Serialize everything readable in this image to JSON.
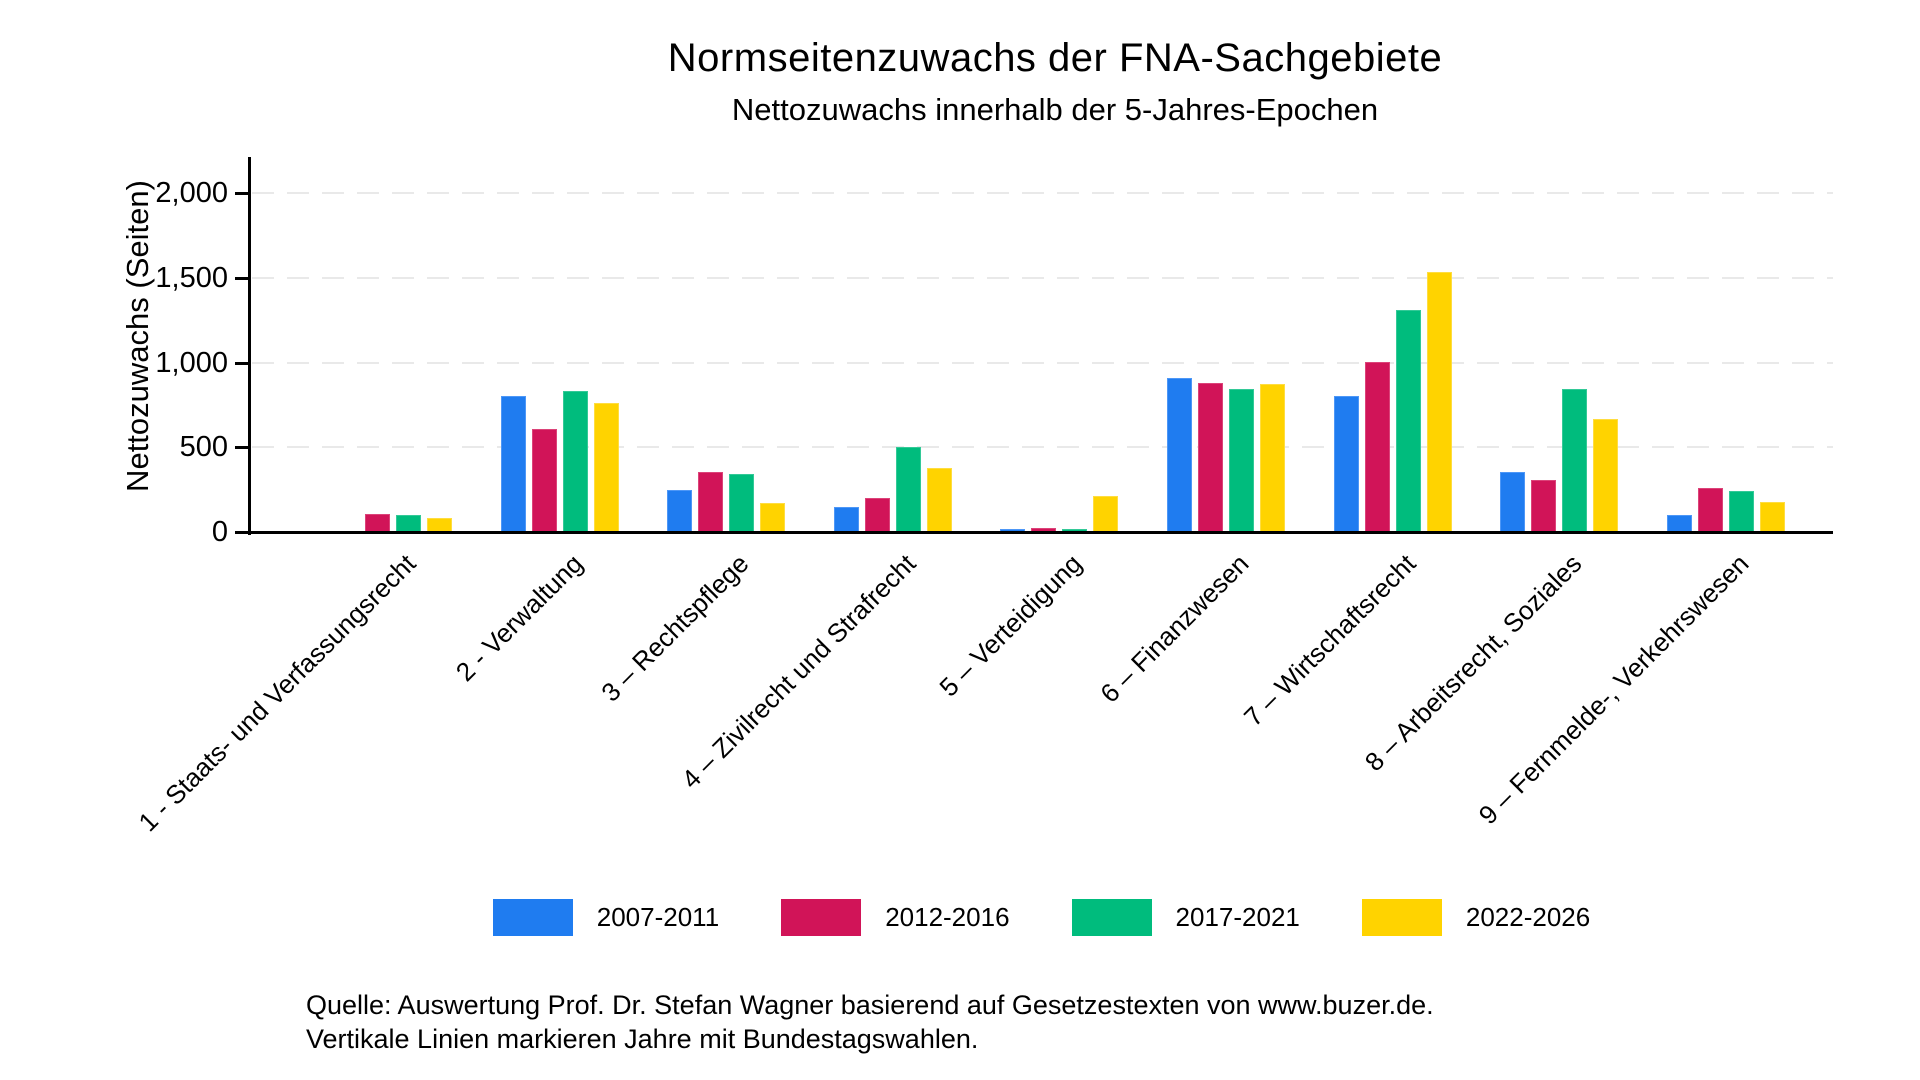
{
  "title": "Normseitenzuwachs der FNA-Sachgebiete",
  "subtitle": "Nettozuwachs innerhalb der 5-Jahres-Epochen",
  "chart_data": {
    "type": "bar",
    "title": "Normseitenzuwachs der FNA-Sachgebiete",
    "subtitle": "Nettozuwachs innerhalb der 5-Jahres-Epochen",
    "xlabel": "",
    "ylabel": "Nettozuwachs (Seiten)",
    "ylim": [
      0,
      2210
    ],
    "yticks": [
      0,
      500,
      1000,
      1500,
      2000
    ],
    "ytick_labels": [
      "0",
      "500",
      "1,000",
      "1,500",
      "2,000"
    ],
    "grid": "horizontal dashed light-gray",
    "legend_position": "bottom-center",
    "categories": [
      "1 - Staats- und Verfassungsrecht",
      "2 - Verwaltung",
      "3 – Rechtspflege",
      "4 – Zivilrecht und Strafrecht",
      "5 – Verteidigung",
      "6 – Finanzwesen",
      "7 – Wirtschaftsrecht",
      "8 – Arbeitsrecht, Soziales",
      "9 – Fernmelde-, Verkehrswesen"
    ],
    "series": [
      {
        "name": "2007-2011",
        "color": "#1f7cf0",
        "edge_color": "#4d97f7",
        "values": [
          0,
          800,
          250,
          150,
          15,
          910,
          800,
          355,
          100
        ]
      },
      {
        "name": "2012-2016",
        "color": "#d11458",
        "edge_color": "#dc4379",
        "values": [
          105,
          610,
          355,
          200,
          25,
          880,
          1005,
          305,
          260
        ]
      },
      {
        "name": "2017-2021",
        "color": "#00bc7d",
        "edge_color": "#33c997",
        "values": [
          100,
          835,
          345,
          500,
          15,
          845,
          1310,
          845,
          240
        ]
      },
      {
        "name": "2022-2026",
        "color": "#ffd300",
        "edge_color": "#ffdd40",
        "values": [
          85,
          760,
          170,
          380,
          210,
          875,
          1535,
          670,
          175
        ]
      }
    ]
  },
  "source_note": {
    "line1": "Quelle: Auswertung Prof. Dr. Stefan Wagner basierend auf Gesetzestexten von www.buzer.de.",
    "line2": "Vertikale Linien markieren Jahre mit Bundestagswahlen."
  }
}
